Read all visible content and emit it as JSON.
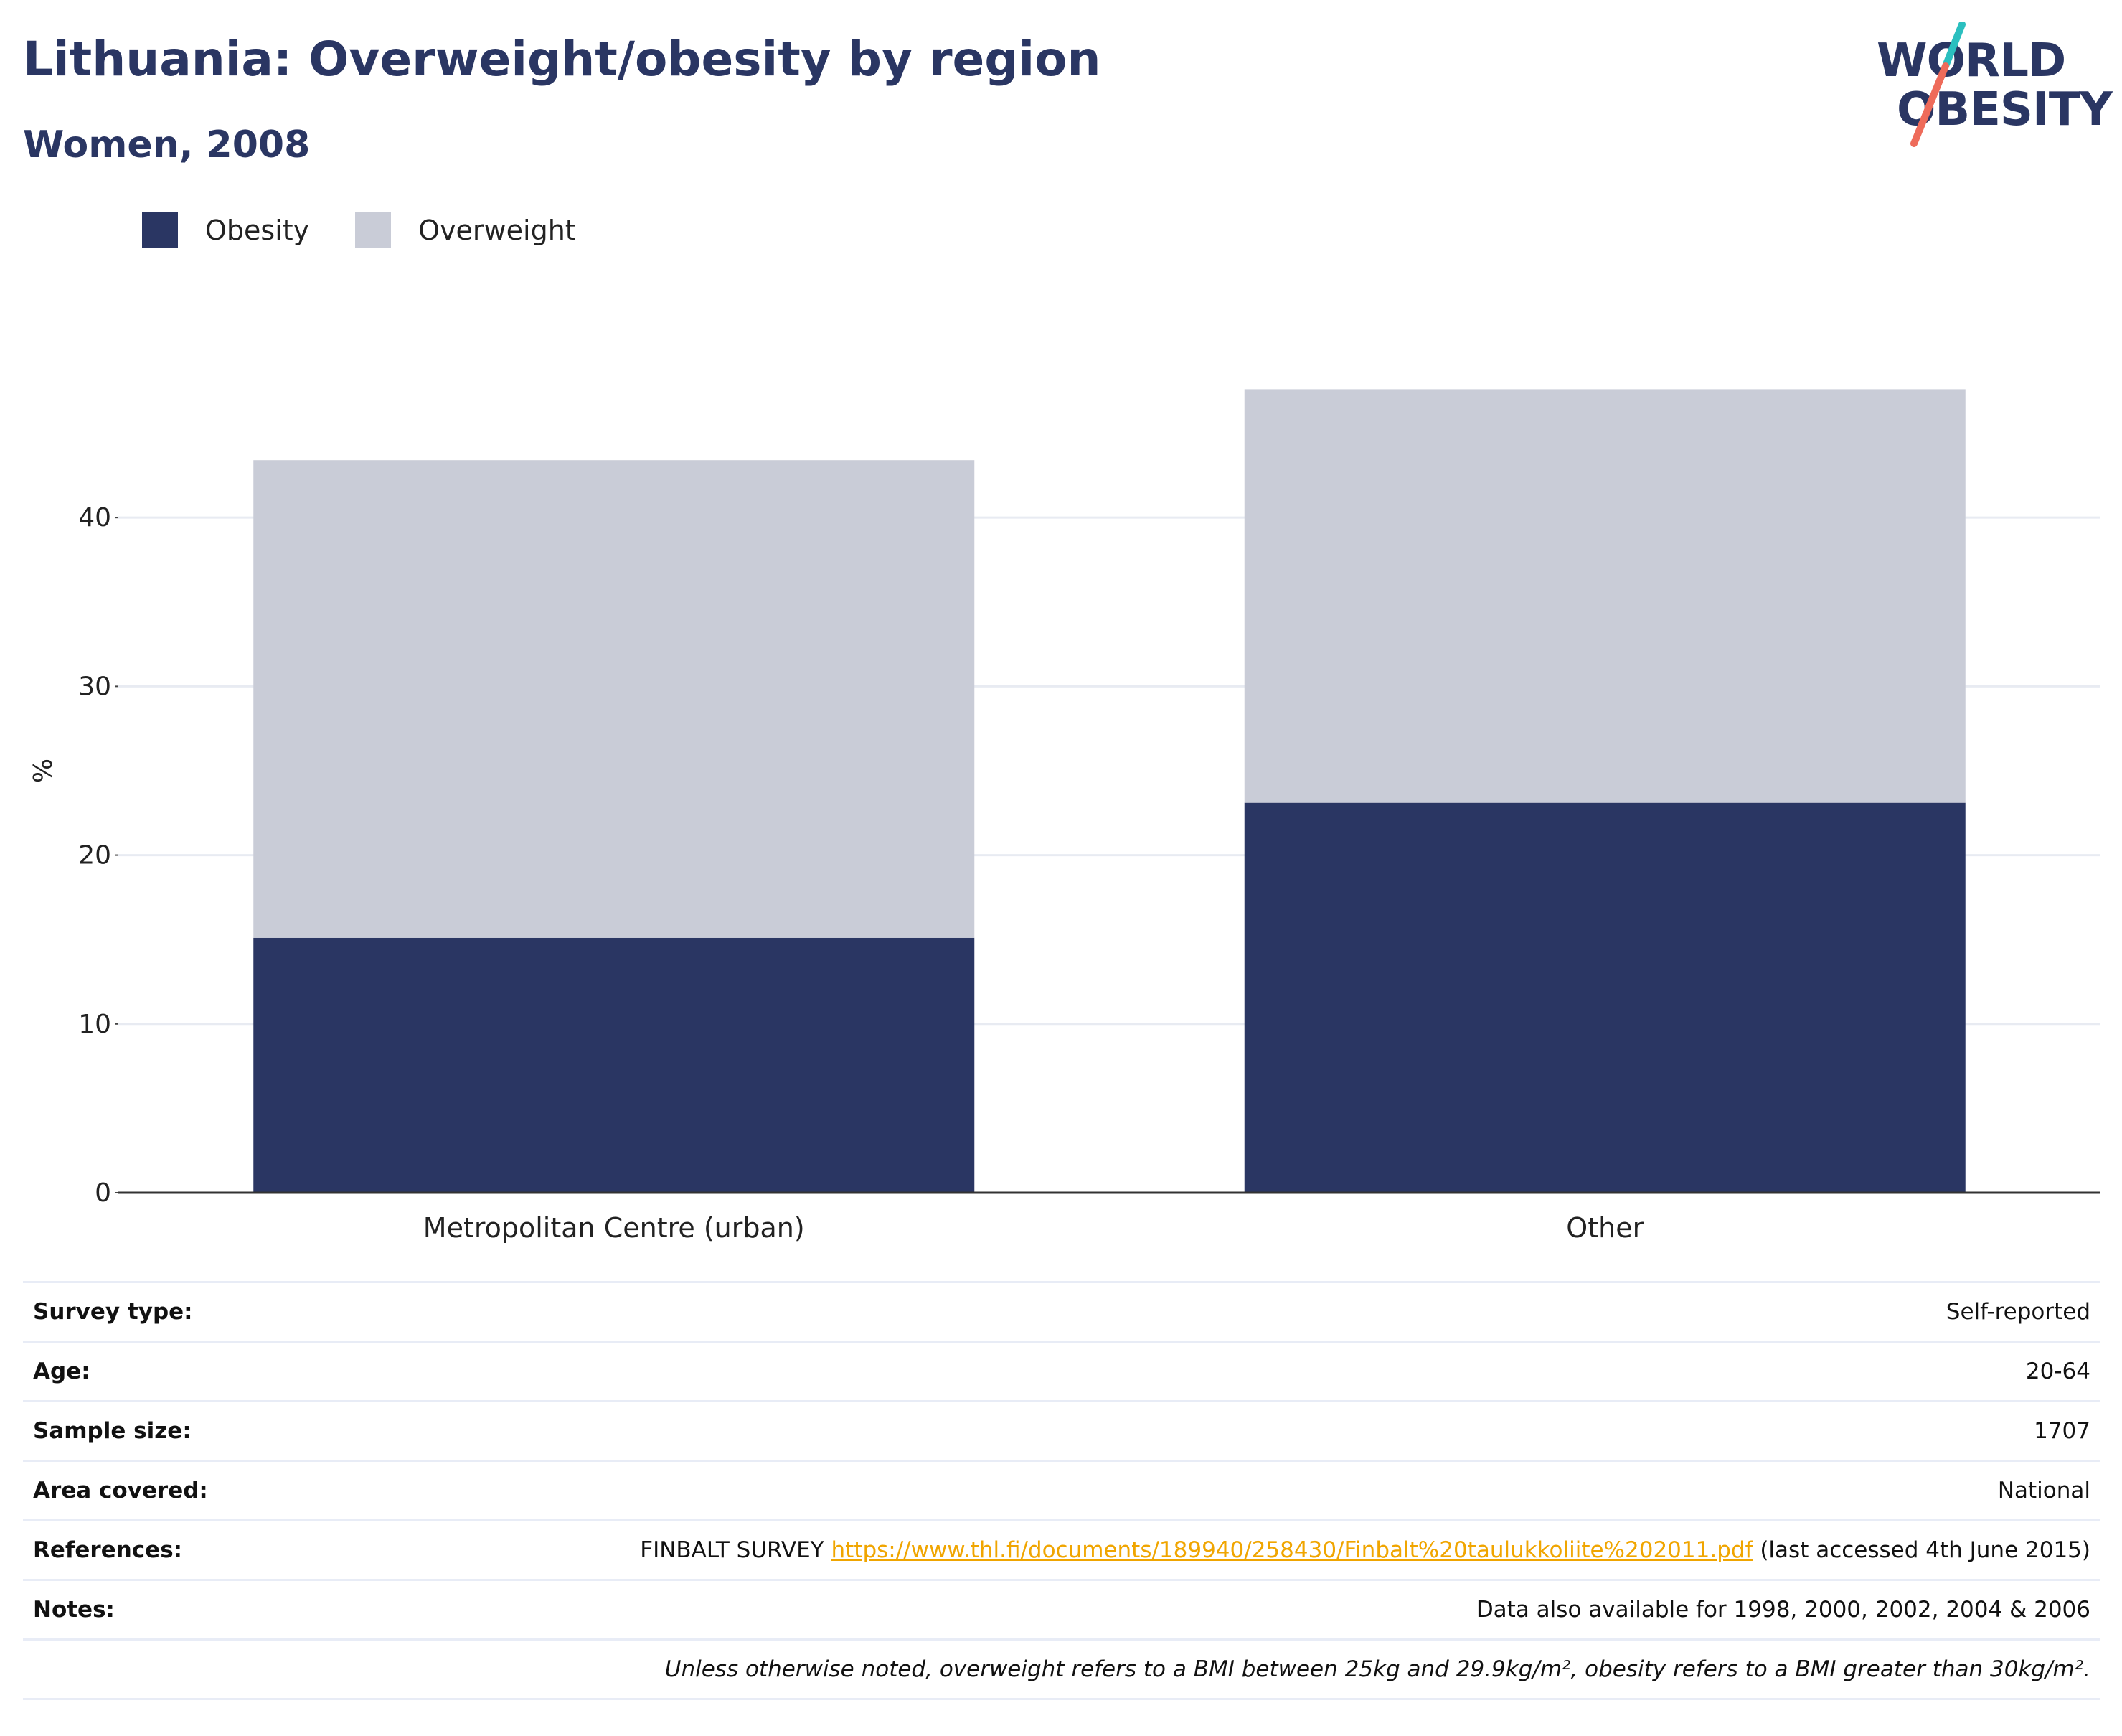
{
  "header": {
    "title": "Lithuania: Overweight/obesity by region",
    "subtitle": "Women, 2008"
  },
  "logo": {
    "line1": "WORLD",
    "line2": "OBESITY",
    "colors": {
      "text": "#2a3663",
      "slash_top": "#2bbfbf",
      "slash_bottom": "#ee6b5a"
    }
  },
  "legend": [
    {
      "label": "Obesity",
      "color": "#2a3663"
    },
    {
      "label": "Overweight",
      "color": "#c9ccd7"
    }
  ],
  "chart_data": {
    "type": "bar",
    "stacked": true,
    "categories": [
      "Metropolitan Centre (urban)",
      "Other"
    ],
    "series": [
      {
        "name": "Obesity",
        "color": "#2a3663",
        "values": [
          15.1,
          23.1
        ]
      },
      {
        "name": "Overweight",
        "color": "#c9ccd7",
        "values": [
          28.3,
          24.5
        ]
      }
    ],
    "ylabel": "%",
    "ylim": [
      0,
      50
    ],
    "yticks": [
      0,
      10,
      20,
      30,
      40
    ],
    "grid": true,
    "legend_position": "top-left"
  },
  "info": {
    "rows": [
      {
        "key": "Survey type:",
        "value": "Self-reported"
      },
      {
        "key": "Age:",
        "value": "20-64"
      },
      {
        "key": "Sample size:",
        "value": "1707"
      },
      {
        "key": "Area covered:",
        "value": "National"
      }
    ],
    "references": {
      "key": "References:",
      "prefix": "FINBALT SURVEY ",
      "link": "https://www.thl.fi/documents/189940/258430/Finbalt%20taulukkoliite%202011.pdf",
      "suffix": " (last accessed 4th June 2015)"
    },
    "notes": {
      "key": "Notes:",
      "value": "Data also available for 1998, 2000, 2002, 2004 & 2006"
    },
    "footnote": "Unless otherwise noted, overweight refers to a BMI between 25kg and 29.9kg/m², obesity refers to a BMI greater than 30kg/m²."
  }
}
